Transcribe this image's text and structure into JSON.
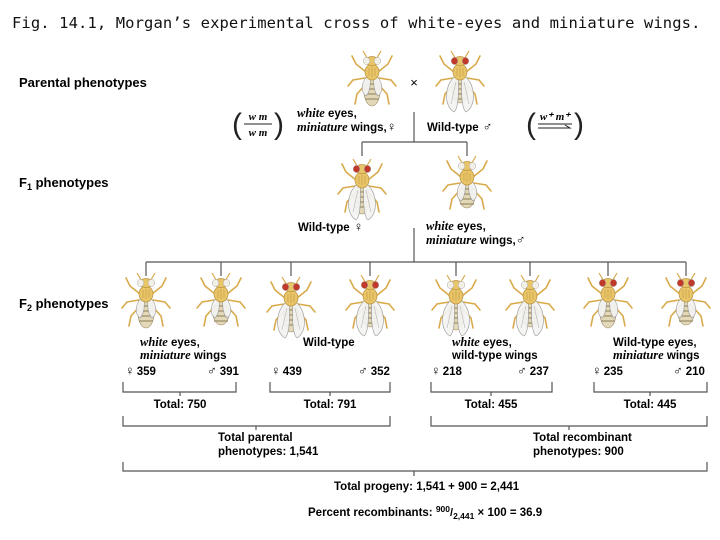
{
  "caption": "Fig. 14.1, Morgan’s experimental cross of white-eyes and miniature wings.",
  "row_labels": {
    "parental": "Parental phenotypes",
    "f1_letter": "F",
    "f1_sub": "1",
    "f1_rest": " phenotypes",
    "f2_letter": "F",
    "f2_sub": "2",
    "f2_rest": " phenotypes"
  },
  "parental": {
    "cross_symbol": "×",
    "female_genotype_top": "w m",
    "female_genotype_bottom": "w m",
    "female_label_1_ital": "white",
    "female_label_1_rest": " eyes,",
    "female_label_2_ital": "miniature",
    "female_label_2_rest": " wings,",
    "female_symbol": "♀",
    "male_label": "Wild-type",
    "male_symbol": "♂",
    "male_genotype_top": "w⁺ m⁺"
  },
  "f1": {
    "female_label": "Wild-type",
    "female_symbol": "♀",
    "male_label_1_ital": "white",
    "male_label_1_rest": " eyes,",
    "male_label_2_ital": "miniature",
    "male_label_2_rest": " wings,",
    "male_symbol": "♂"
  },
  "f2_groups": [
    {
      "line1_ital": "white",
      "line1_rest": " eyes,",
      "line2_ital": "miniature",
      "line2_rest": " wings",
      "female_count": "359",
      "male_count": "391",
      "total": "Total: 750"
    },
    {
      "line1_ital": "",
      "line1_rest": "Wild-type",
      "line2_ital": "",
      "line2_rest": "",
      "female_count": "439",
      "male_count": "352",
      "total": "Total: 791"
    },
    {
      "line1_ital": "white",
      "line1_rest": " eyes,",
      "line2_ital": "",
      "line2_rest": "wild-type wings",
      "female_count": "218",
      "male_count": "237",
      "total": "Total: 455"
    },
    {
      "line1_ital": "",
      "line1_rest": "Wild-type eyes,",
      "line2_ital": "miniature",
      "line2_rest": " wings",
      "female_count": "235",
      "male_count": "210",
      "total": "Total: 445"
    }
  ],
  "female_symbol": "♀",
  "male_symbol": "♂",
  "totals": {
    "parental_1": "Total parental",
    "parental_2": "phenotypes: 1,541",
    "recombinant_1": "Total recombinant",
    "recombinant_2": "phenotypes: 900",
    "progeny": "Total progeny: 1,541 + 900 = 2,441",
    "percent_prefix": "Percent recombinants: ",
    "percent_num": "900",
    "percent_den": "2,441",
    "percent_suffix": " × 100 = 36.9"
  },
  "colors": {
    "body": "#e9c56a",
    "abdomen": "#e3d9b8",
    "stripe": "#9a8a66",
    "wing": "#f4f4f2",
    "wild_eye": "#c0392b",
    "white_eye": "#f1efe6",
    "line": "#555555"
  }
}
